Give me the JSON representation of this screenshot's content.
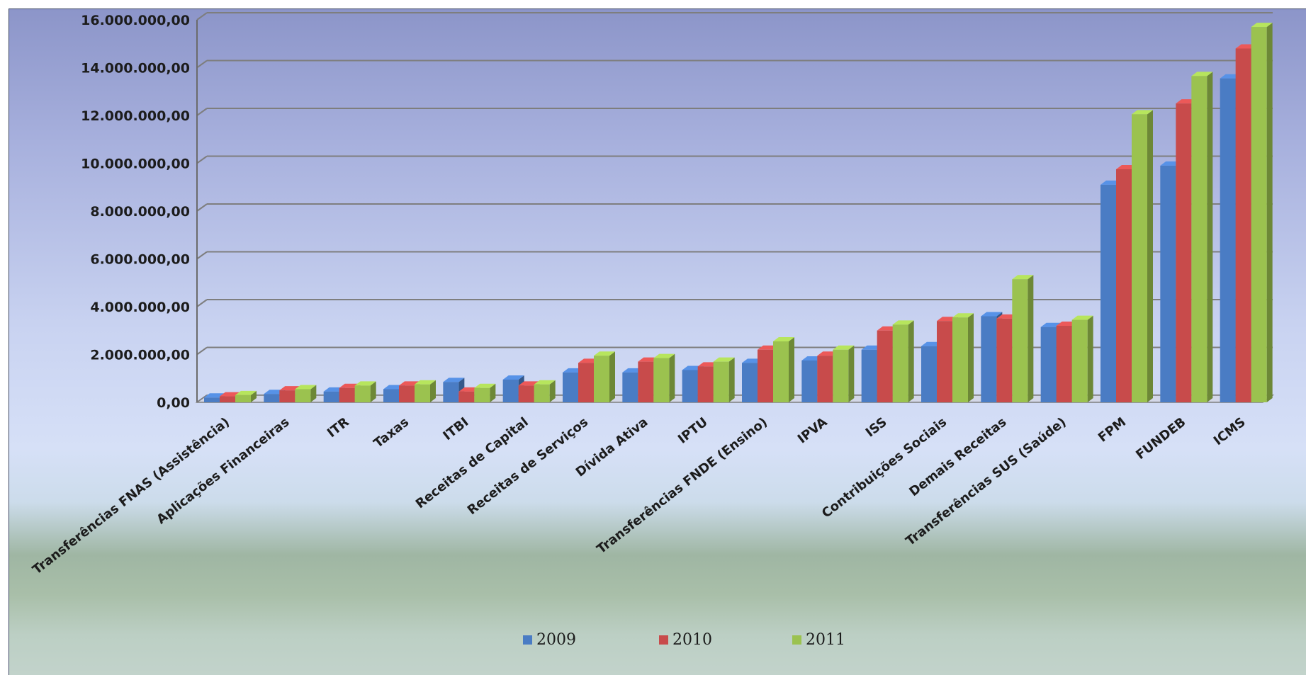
{
  "chart_data": {
    "type": "bar",
    "title": "",
    "xlabel": "",
    "ylabel": "",
    "ylim": [
      0,
      16000000
    ],
    "yticks": [
      "0,00",
      "2.000.000,00",
      "4.000.000,00",
      "6.000.000,00",
      "8.000.000,00",
      "10.000.000,00",
      "12.000.000,00",
      "14.000.000,00",
      "16.000.000,00"
    ],
    "grid": true,
    "legend_position": "bottom",
    "categories": [
      "Transferências FNAS (Assistência)",
      "Aplicações Financeiras",
      "ITR",
      "Taxas",
      "ITBI",
      "Receitas de Capital",
      "Receitas de Serviços",
      "Dívida Ativa",
      "IPTU",
      "Transferências FNDE (Ensino)",
      "IPVA",
      "ISS",
      "Contribuições Sociais",
      "Demais Receitas",
      "Transferências SUS (Saúde)",
      "FPM",
      "FUNDEB",
      "ICMS"
    ],
    "series": [
      {
        "name": "2009",
        "color": "#4a7cc4",
        "values": [
          200000,
          350000,
          450000,
          550000,
          850000,
          950000,
          1250000,
          1250000,
          1350000,
          1650000,
          1750000,
          2200000,
          2350000,
          3600000,
          3150000,
          9100000,
          9900000,
          13550000
        ]
      },
      {
        "name": "2010",
        "color": "#c84b4b",
        "values": [
          250000,
          500000,
          600000,
          700000,
          450000,
          700000,
          1650000,
          1700000,
          1500000,
          2200000,
          1950000,
          3000000,
          3400000,
          3500000,
          3200000,
          9750000,
          12500000,
          14800000
        ]
      },
      {
        "name": "2011",
        "color": "#9bc24f",
        "values": [
          300000,
          550000,
          700000,
          750000,
          600000,
          750000,
          1950000,
          1850000,
          1700000,
          2550000,
          2200000,
          3250000,
          3550000,
          5150000,
          3450000,
          12050000,
          13650000,
          15700000
        ]
      }
    ]
  }
}
